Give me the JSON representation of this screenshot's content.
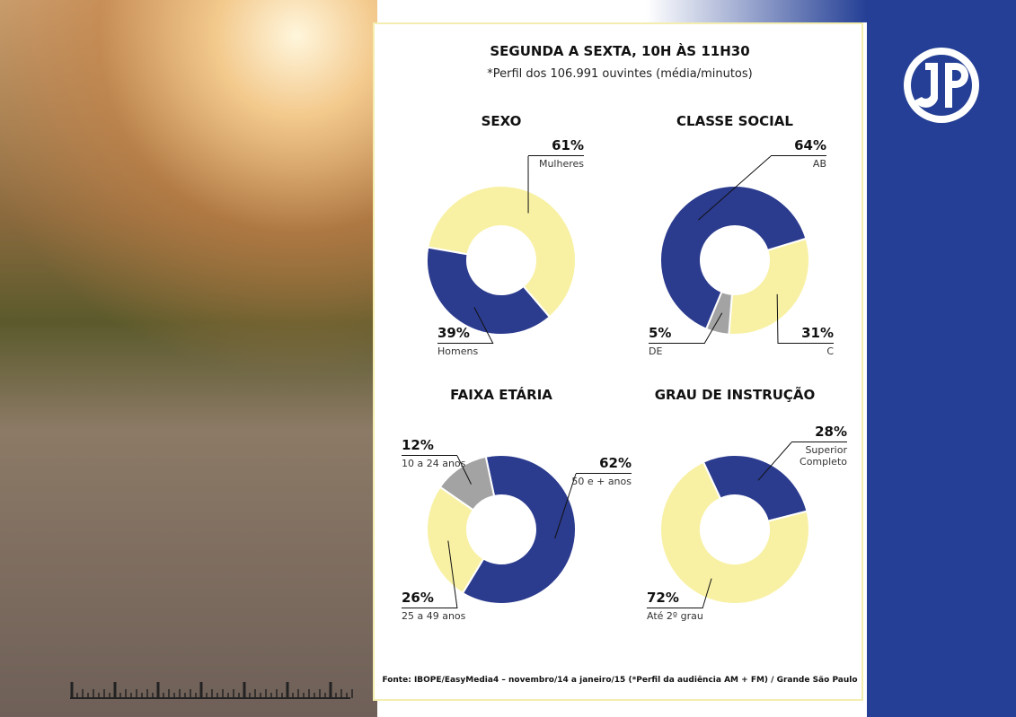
{
  "header": {
    "title": "SEGUNDA A SEXTA, 10H ÀS 11H30",
    "subtitle": "*Perfil dos 106.991 ouvintes (média/minutos)"
  },
  "source": "Fonte: IBOPE/EasyMedia4 – novembro/14 a janeiro/15 (*Perfil da audiência AM + FM) / Grande São Paulo",
  "chart_data": [
    {
      "type": "pie",
      "title": "SEXO",
      "categories": [
        "Mulheres",
        "Homens"
      ],
      "values": [
        61,
        39
      ],
      "value_labels": [
        "61%",
        "39%"
      ],
      "colors": [
        "#f8f1a4",
        "#2b3b8e"
      ]
    },
    {
      "type": "pie",
      "title": "CLASSE SOCIAL",
      "categories": [
        "C",
        "DE",
        "AB"
      ],
      "values": [
        31,
        5,
        64
      ],
      "value_labels": [
        "31%",
        "5%",
        "64%"
      ],
      "colors": [
        "#f8f1a4",
        "#a3a3a3",
        "#2b3b8e"
      ]
    },
    {
      "type": "pie",
      "title": "FAIXA ETÁRIA",
      "categories": [
        "50 e + anos",
        "25 a 49 anos",
        "10 a 24 anos"
      ],
      "values": [
        62,
        26,
        12
      ],
      "value_labels": [
        "62%",
        "26%",
        "12%"
      ],
      "colors": [
        "#2b3b8e",
        "#f8f1a4",
        "#a3a3a3"
      ]
    },
    {
      "type": "pie",
      "title": "GRAU DE INSTRUÇÃO",
      "categories": [
        "Superior Completo",
        "Até 2º grau"
      ],
      "values": [
        28,
        72
      ],
      "value_labels": [
        "28%",
        "72%"
      ],
      "colors": [
        "#2b3b8e",
        "#f8f1a4"
      ]
    }
  ]
}
